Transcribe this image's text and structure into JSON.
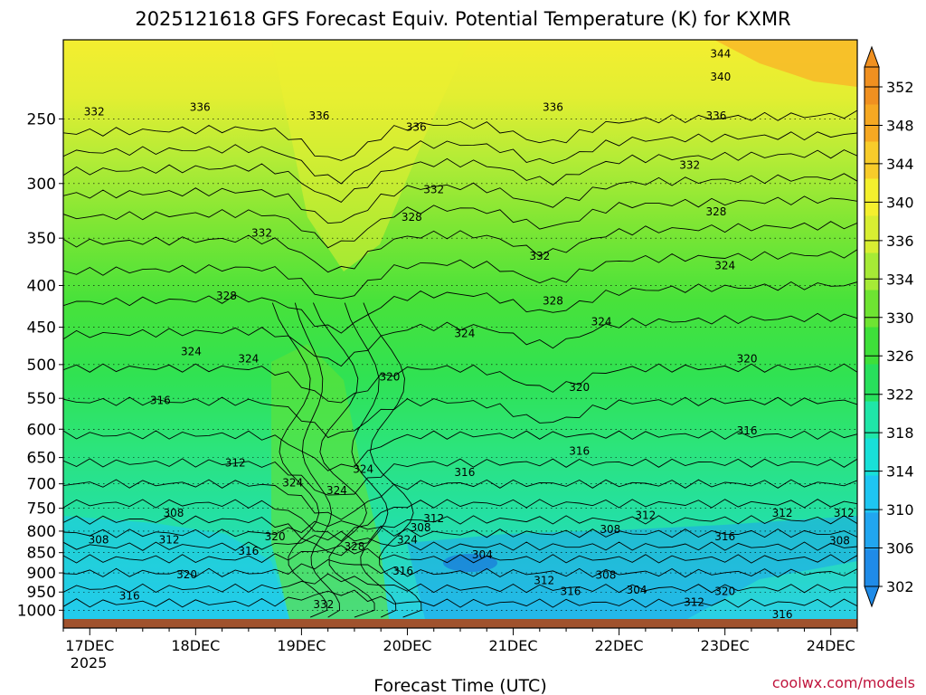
{
  "chart_data": {
    "type": "heatmap",
    "title": "2025121618 GFS Forecast Equiv. Potential Temperature (K) for KXMR",
    "xlabel": "Forecast Time (UTC)",
    "ylabel": "",
    "credit": "coolwx.com/models",
    "x_ticks": [
      {
        "label": "17DEC",
        "value": 6
      },
      {
        "label": "18DEC",
        "value": 30
      },
      {
        "label": "19DEC",
        "value": 54
      },
      {
        "label": "20DEC",
        "value": 78
      },
      {
        "label": "21DEC",
        "value": 102
      },
      {
        "label": "22DEC",
        "value": 126
      },
      {
        "label": "23DEC",
        "value": 150
      },
      {
        "label": "24DEC",
        "value": 174
      }
    ],
    "x_sub_label": "2025",
    "xlim": [
      0,
      180
    ],
    "y_axis": "pressure (hPa), log scale, inverted",
    "ylim": [
      1025,
      200
    ],
    "y_ticks": [
      1000,
      950,
      900,
      850,
      800,
      750,
      700,
      650,
      600,
      550,
      500,
      450,
      400,
      350,
      300,
      250
    ],
    "colorbar": {
      "ticks": [
        302,
        306,
        310,
        314,
        318,
        322,
        326,
        330,
        334,
        336,
        340,
        344,
        348,
        352
      ],
      "colors": [
        "#1f8be8",
        "#21a6f0",
        "#1ec6f2",
        "#18e0d8",
        "#1fe6a8",
        "#28e05c",
        "#3ee03a",
        "#6ee432",
        "#a6ea36",
        "#d8ee32",
        "#f4f02e",
        "#f8cc2a",
        "#f6a822",
        "#f09020"
      ]
    },
    "isotherm_labels": [
      {
        "text": "332",
        "t": 7,
        "p": 245
      },
      {
        "text": "336",
        "t": 31,
        "p": 242
      },
      {
        "text": "336",
        "t": 58,
        "p": 248
      },
      {
        "text": "336",
        "t": 80,
        "p": 256
      },
      {
        "text": "336",
        "t": 111,
        "p": 242
      },
      {
        "text": "344",
        "t": 149,
        "p": 208
      },
      {
        "text": "340",
        "t": 149,
        "p": 222
      },
      {
        "text": "336",
        "t": 148,
        "p": 248
      },
      {
        "text": "332",
        "t": 142,
        "p": 285
      },
      {
        "text": "332",
        "t": 84,
        "p": 305
      },
      {
        "text": "328",
        "t": 79,
        "p": 330
      },
      {
        "text": "328",
        "t": 148,
        "p": 325
      },
      {
        "text": "332",
        "t": 45,
        "p": 345
      },
      {
        "text": "332",
        "t": 108,
        "p": 368
      },
      {
        "text": "324",
        "t": 150,
        "p": 378
      },
      {
        "text": "328",
        "t": 37,
        "p": 412
      },
      {
        "text": "328",
        "t": 111,
        "p": 418
      },
      {
        "text": "324",
        "t": 91,
        "p": 458
      },
      {
        "text": "324",
        "t": 122,
        "p": 443
      },
      {
        "text": "324",
        "t": 29,
        "p": 482
      },
      {
        "text": "324",
        "t": 42,
        "p": 492
      },
      {
        "text": "320",
        "t": 74,
        "p": 518
      },
      {
        "text": "320",
        "t": 117,
        "p": 533
      },
      {
        "text": "320",
        "t": 155,
        "p": 492
      },
      {
        "text": "316",
        "t": 22,
        "p": 553
      },
      {
        "text": "316",
        "t": 117,
        "p": 638
      },
      {
        "text": "316",
        "t": 155,
        "p": 603
      },
      {
        "text": "316",
        "t": 91,
        "p": 678
      },
      {
        "text": "312",
        "t": 39,
        "p": 660
      },
      {
        "text": "324",
        "t": 52,
        "p": 698
      },
      {
        "text": "324",
        "t": 68,
        "p": 672
      },
      {
        "text": "324",
        "t": 62,
        "p": 713
      },
      {
        "text": "308",
        "t": 25,
        "p": 760
      },
      {
        "text": "312",
        "t": 84,
        "p": 772
      },
      {
        "text": "312",
        "t": 132,
        "p": 765
      },
      {
        "text": "312",
        "t": 163,
        "p": 760
      },
      {
        "text": "312",
        "t": 177,
        "p": 760
      },
      {
        "text": "308",
        "t": 81,
        "p": 792
      },
      {
        "text": "308",
        "t": 124,
        "p": 796
      },
      {
        "text": "308",
        "t": 8,
        "p": 820
      },
      {
        "text": "312",
        "t": 24,
        "p": 820
      },
      {
        "text": "320",
        "t": 48,
        "p": 812
      },
      {
        "text": "316",
        "t": 42,
        "p": 846
      },
      {
        "text": "316",
        "t": 150,
        "p": 812
      },
      {
        "text": "308",
        "t": 176,
        "p": 822
      },
      {
        "text": "328",
        "t": 66,
        "p": 836
      },
      {
        "text": "324",
        "t": 78,
        "p": 820
      },
      {
        "text": "304",
        "t": 95,
        "p": 855
      },
      {
        "text": "316",
        "t": 77,
        "p": 895
      },
      {
        "text": "320",
        "t": 28,
        "p": 905
      },
      {
        "text": "308",
        "t": 123,
        "p": 906
      },
      {
        "text": "312",
        "t": 109,
        "p": 920
      },
      {
        "text": "316",
        "t": 115,
        "p": 948
      },
      {
        "text": "304",
        "t": 130,
        "p": 945
      },
      {
        "text": "320",
        "t": 150,
        "p": 948
      },
      {
        "text": "316",
        "t": 15,
        "p": 960
      },
      {
        "text": "332",
        "t": 59,
        "p": 984
      },
      {
        "text": "312",
        "t": 143,
        "p": 978
      },
      {
        "text": "316",
        "t": 163,
        "p": 1012
      }
    ]
  }
}
